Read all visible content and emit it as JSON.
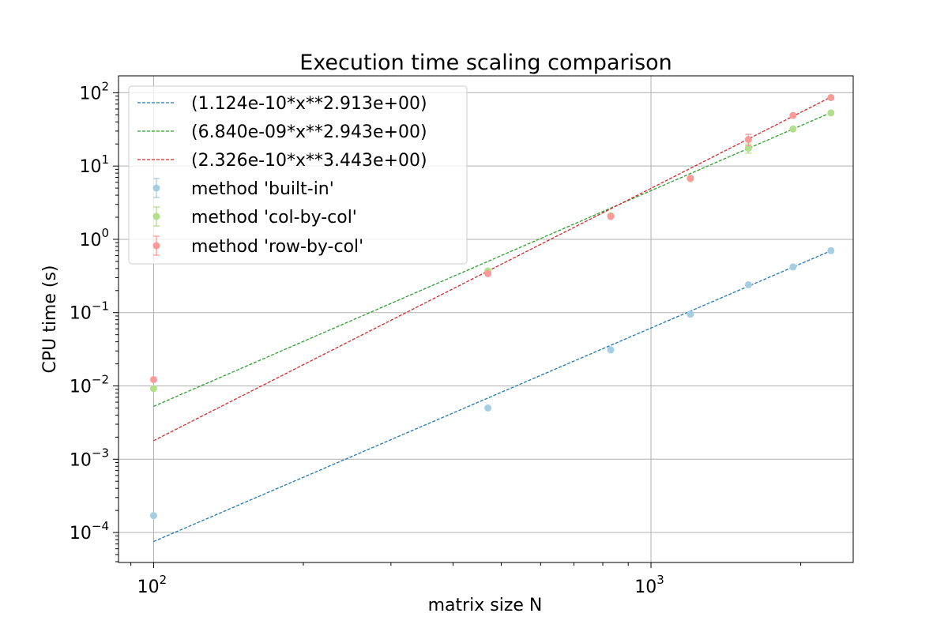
{
  "chart_data": {
    "type": "scatter",
    "title": "Execution time scaling comparison",
    "xlabel": "matrix size N",
    "ylabel": "CPU time (s)",
    "xscale": "log",
    "yscale": "log",
    "xlim": [
      85,
      2550
    ],
    "ylim": [
      3.9e-05,
      170
    ],
    "grid": true,
    "legend_position": "top-left",
    "x_ticks": [
      {
        "base": "10",
        "exp": "2",
        "value": 100
      },
      {
        "base": "10",
        "exp": "3",
        "value": 1000
      }
    ],
    "y_ticks": [
      {
        "base": "10",
        "exp": "−4",
        "value": 0.0001
      },
      {
        "base": "10",
        "exp": "−3",
        "value": 0.001
      },
      {
        "base": "10",
        "exp": "−2",
        "value": 0.01
      },
      {
        "base": "10",
        "exp": "−1",
        "value": 0.1
      },
      {
        "base": "10",
        "exp": "0",
        "value": 1
      },
      {
        "base": "10",
        "exp": "1",
        "value": 10
      },
      {
        "base": "10",
        "exp": "2",
        "value": 100
      }
    ],
    "fits": [
      {
        "label": "(1.124e-10*x**2.913e+00)",
        "coef": 1.124e-10,
        "exp": 2.913,
        "color": "#1f77b4",
        "x_range": [
          100,
          2300
        ]
      },
      {
        "label": "(6.840e-09*x**2.943e+00)",
        "coef": 6.84e-09,
        "exp": 2.943,
        "color": "#2ca02c",
        "x_range": [
          100,
          2300
        ]
      },
      {
        "label": "(2.326e-10*x**3.443e+00)",
        "coef": 2.326e-10,
        "exp": 3.443,
        "color": "#d62728",
        "x_range": [
          100,
          2300
        ]
      }
    ],
    "series": [
      {
        "name": "method 'built-in'",
        "color": "#a6cee3",
        "x": [
          100,
          470,
          830,
          1200,
          1570,
          1930,
          2300
        ],
        "y": [
          0.00017,
          0.005,
          0.031,
          0.095,
          0.24,
          0.42,
          0.7
        ],
        "err": [
          0,
          0,
          0,
          0,
          0,
          0,
          0
        ]
      },
      {
        "name": "method 'col-by-col'",
        "color": "#b2df8a",
        "x": [
          100,
          470,
          830,
          1200,
          1570,
          1930,
          2300
        ],
        "y": [
          0.0092,
          0.37,
          2.1,
          6.7,
          17.5,
          32,
          53
        ],
        "err": [
          0,
          0,
          0,
          0,
          2.5,
          0,
          0
        ]
      },
      {
        "name": "method 'row-by-col'",
        "color": "#fb9a99",
        "x": [
          100,
          470,
          830,
          1200,
          1570,
          1930,
          2300
        ],
        "y": [
          0.0122,
          0.34,
          2.05,
          6.8,
          23,
          49,
          86
        ],
        "err": [
          0,
          0,
          0,
          0,
          4,
          0,
          0
        ]
      }
    ]
  }
}
